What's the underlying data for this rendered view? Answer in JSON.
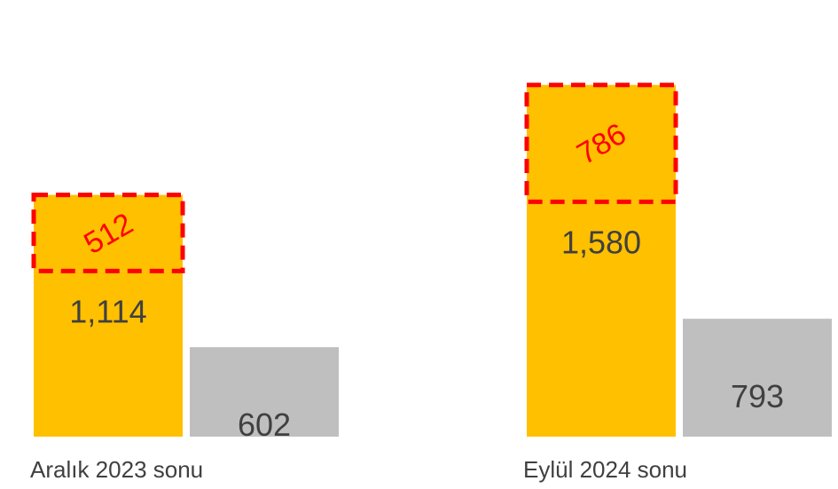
{
  "chart_data": {
    "type": "bar",
    "categories": [
      "Aralık 2023 sonu",
      "Eylül 2024 sonu"
    ],
    "series": [
      {
        "values": [
          1114,
          1580
        ],
        "labels": [
          "1,114",
          "1,580"
        ],
        "color": "#ffc000"
      },
      {
        "values": [
          602,
          793
        ],
        "labels": [
          "602",
          "793"
        ],
        "color": "#bfbfbf"
      }
    ],
    "stacked_addition": {
      "values": [
        512,
        786
      ],
      "labels": [
        "512",
        "786"
      ],
      "fill_color": "#ffc000",
      "border_color": "#ff0000",
      "border_style": "dashed",
      "label_color": "#ff0000"
    },
    "title": "",
    "xlabel": "",
    "ylabel": "",
    "grid": false,
    "legend": "none"
  }
}
